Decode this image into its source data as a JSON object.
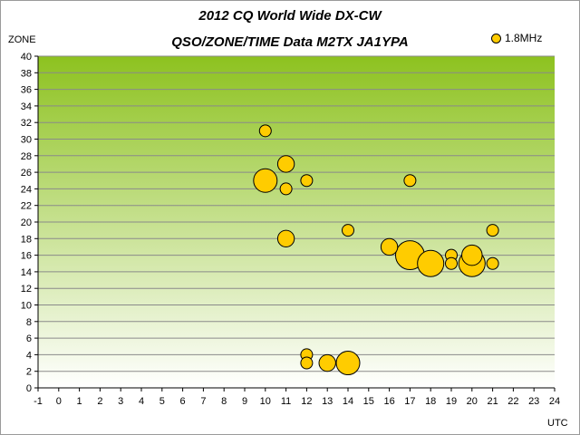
{
  "chart_data": {
    "type": "scatter",
    "title": "2012 CQ World Wide DX-CW",
    "subtitle": "QSO/ZONE/TIME Data M2TX JA1YPA",
    "xlabel": "UTC",
    "ylabel": "ZONE",
    "xlim": [
      -1,
      24
    ],
    "ylim": [
      0,
      40
    ],
    "x_ticks": [
      -1,
      0,
      1,
      2,
      3,
      4,
      5,
      6,
      7,
      8,
      9,
      10,
      11,
      12,
      13,
      14,
      15,
      16,
      17,
      18,
      19,
      20,
      21,
      22,
      23,
      24
    ],
    "y_ticks": [
      0,
      2,
      4,
      6,
      8,
      10,
      12,
      14,
      16,
      18,
      20,
      22,
      24,
      26,
      28,
      30,
      32,
      34,
      36,
      38,
      40
    ],
    "legend": "top-right",
    "colors": {
      "bubble": "#ffcc00",
      "plot_top": "#8dc21f",
      "plot_bottom": "#ffffff"
    },
    "series": [
      {
        "name": "1.8MHz",
        "points": [
          {
            "x": 10,
            "y": 31,
            "qso": 1
          },
          {
            "x": 10,
            "y": 25,
            "qso": 4
          },
          {
            "x": 11,
            "y": 27,
            "qso": 2
          },
          {
            "x": 11,
            "y": 24,
            "qso": 1
          },
          {
            "x": 11,
            "y": 18,
            "qso": 2
          },
          {
            "x": 12,
            "y": 25,
            "qso": 1
          },
          {
            "x": 12,
            "y": 4,
            "qso": 1
          },
          {
            "x": 12,
            "y": 3,
            "qso": 1
          },
          {
            "x": 13,
            "y": 3,
            "qso": 2
          },
          {
            "x": 14,
            "y": 3,
            "qso": 4
          },
          {
            "x": 14,
            "y": 19,
            "qso": 1
          },
          {
            "x": 16,
            "y": 17,
            "qso": 2
          },
          {
            "x": 17,
            "y": 25,
            "qso": 1
          },
          {
            "x": 17,
            "y": 16,
            "qso": 6
          },
          {
            "x": 18,
            "y": 15,
            "qso": 5
          },
          {
            "x": 19,
            "y": 16,
            "qso": 1
          },
          {
            "x": 19,
            "y": 15,
            "qso": 1
          },
          {
            "x": 20,
            "y": 15,
            "qso": 5
          },
          {
            "x": 20,
            "y": 16,
            "qso": 3
          },
          {
            "x": 21,
            "y": 19,
            "qso": 1
          },
          {
            "x": 21,
            "y": 15,
            "qso": 1
          }
        ]
      }
    ]
  }
}
